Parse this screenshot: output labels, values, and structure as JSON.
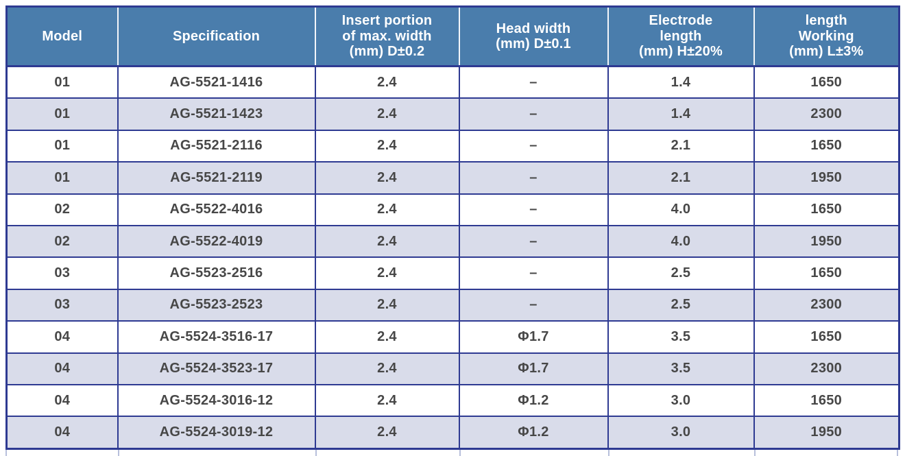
{
  "table": {
    "columns": [
      {
        "key": "model",
        "label": "Model"
      },
      {
        "key": "specification",
        "label": "Specification"
      },
      {
        "key": "insert_width",
        "label": "Insert portion\nof max. width\n(mm) D±0.2"
      },
      {
        "key": "head_width",
        "label": "Head width\n(mm) D±0.1"
      },
      {
        "key": "electrode_length",
        "label": "Electrode\nlength\n(mm) H±20%"
      },
      {
        "key": "working_length",
        "label": "length\nWorking\n(mm) L±3%"
      }
    ],
    "rows": [
      {
        "model": "01",
        "specification": "AG-5521-1416",
        "insert_width": "2.4",
        "head_width": "–",
        "electrode_length": "1.4",
        "working_length": "1650"
      },
      {
        "model": "01",
        "specification": "AG-5521-1423",
        "insert_width": "2.4",
        "head_width": "–",
        "electrode_length": "1.4",
        "working_length": "2300"
      },
      {
        "model": "01",
        "specification": "AG-5521-2116",
        "insert_width": "2.4",
        "head_width": "–",
        "electrode_length": "2.1",
        "working_length": "1650"
      },
      {
        "model": "01",
        "specification": "AG-5521-2119",
        "insert_width": "2.4",
        "head_width": "–",
        "electrode_length": "2.1",
        "working_length": "1950"
      },
      {
        "model": "02",
        "specification": "AG-5522-4016",
        "insert_width": "2.4",
        "head_width": "–",
        "electrode_length": "4.0",
        "working_length": "1650"
      },
      {
        "model": "02",
        "specification": "AG-5522-4019",
        "insert_width": "2.4",
        "head_width": "–",
        "electrode_length": "4.0",
        "working_length": "1950"
      },
      {
        "model": "03",
        "specification": "AG-5523-2516",
        "insert_width": "2.4",
        "head_width": "–",
        "electrode_length": "2.5",
        "working_length": "1650"
      },
      {
        "model": "03",
        "specification": "AG-5523-2523",
        "insert_width": "2.4",
        "head_width": "–",
        "electrode_length": "2.5",
        "working_length": "2300"
      },
      {
        "model": "04",
        "specification": "AG-5524-3516-17",
        "insert_width": "2.4",
        "head_width": "Φ1.7",
        "electrode_length": "3.5",
        "working_length": "1650"
      },
      {
        "model": "04",
        "specification": "AG-5524-3523-17",
        "insert_width": "2.4",
        "head_width": "Φ1.7",
        "electrode_length": "3.5",
        "working_length": "2300"
      },
      {
        "model": "04",
        "specification": "AG-5524-3016-12",
        "insert_width": "2.4",
        "head_width": "Φ1.2",
        "electrode_length": "3.0",
        "working_length": "1650"
      },
      {
        "model": "04",
        "specification": "AG-5524-3019-12",
        "insert_width": "2.4",
        "head_width": "Φ1.2",
        "electrode_length": "3.0",
        "working_length": "1950"
      }
    ],
    "colors": {
      "header_bg": "#4a7dac",
      "header_text": "#ffffff",
      "border": "#2e3a92",
      "row_alt": "#d9dcea",
      "body_text": "#474747"
    }
  }
}
